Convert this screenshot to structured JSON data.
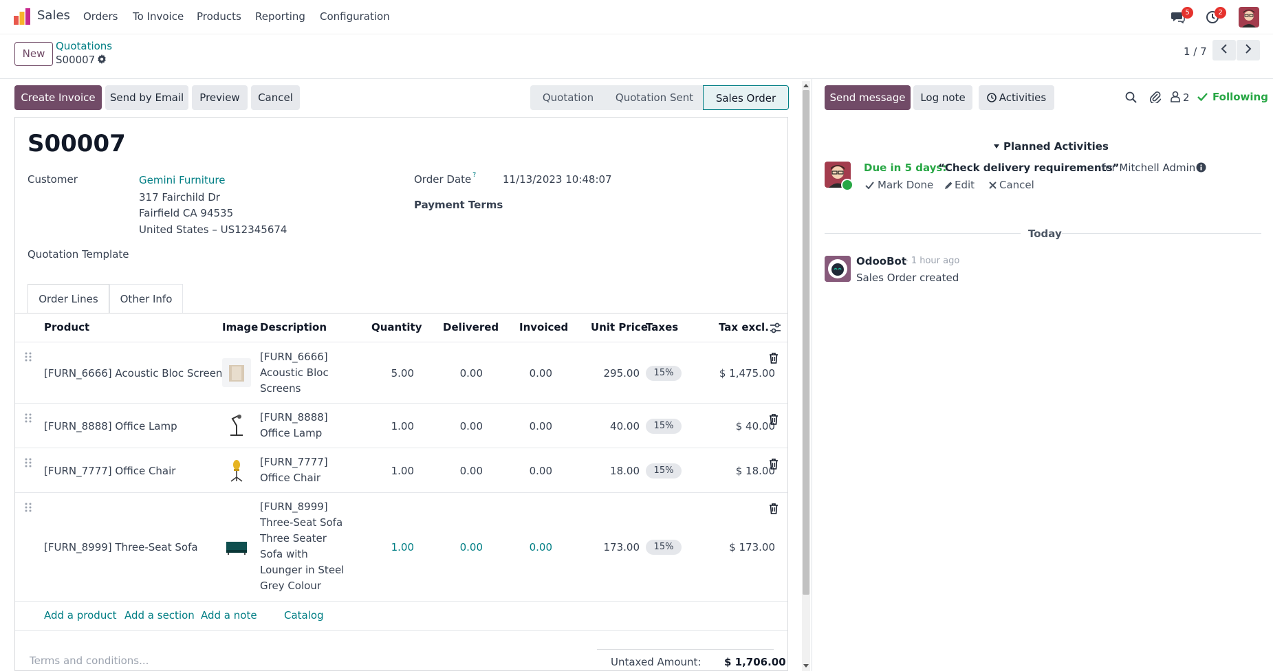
{
  "navbar": {
    "app_name": "Sales",
    "menu": [
      "Orders",
      "To Invoice",
      "Products",
      "Reporting",
      "Configuration"
    ],
    "messages_badge": "5",
    "activities_badge": "2"
  },
  "control_panel": {
    "new_label": "New",
    "breadcrumb_parent": "Quotations",
    "breadcrumb_current": "S00007",
    "pager": "1 / 7"
  },
  "actions": {
    "create_invoice": "Create Invoice",
    "send_by_email": "Send by Email",
    "preview": "Preview",
    "cancel": "Cancel"
  },
  "statusbar": {
    "steps": [
      "Quotation",
      "Quotation Sent",
      "Sales Order"
    ],
    "active": "Sales Order"
  },
  "form": {
    "title": "S00007",
    "customer_label": "Customer",
    "customer_name": "Gemini Furniture",
    "customer_address": [
      "317 Fairchild Dr",
      "Fairfield CA 94535",
      "United States – US12345674"
    ],
    "order_date_label": "Order Date",
    "order_date_help": "?",
    "order_date_value": "11/13/2023 10:48:07",
    "payment_terms_label": "Payment Terms",
    "quotation_template_label": "Quotation Template"
  },
  "tabs": [
    "Order Lines",
    "Other Info"
  ],
  "table": {
    "headers": {
      "product": "Product",
      "image": "Image",
      "description": "Description",
      "quantity": "Quantity",
      "delivered": "Delivered",
      "invoiced": "Invoiced",
      "unit_price": "Unit Price",
      "taxes": "Taxes",
      "tax_excl": "Tax excl."
    },
    "rows": [
      {
        "product": "[FURN_6666] Acoustic Bloc Screens",
        "description": [
          "[FURN_6666]",
          "Acoustic Bloc",
          "Screens"
        ],
        "quantity": "5.00",
        "delivered": "0.00",
        "invoiced": "0.00",
        "unit_price": "295.00",
        "tax": "15%",
        "subtotal": "$ 1,475.00"
      },
      {
        "product": "[FURN_8888] Office Lamp",
        "description": [
          "[FURN_8888]",
          "Office Lamp"
        ],
        "quantity": "1.00",
        "delivered": "0.00",
        "invoiced": "0.00",
        "unit_price": "40.00",
        "tax": "15%",
        "subtotal": "$ 40.00"
      },
      {
        "product": "[FURN_7777] Office Chair",
        "description": [
          "[FURN_7777]",
          "Office Chair"
        ],
        "quantity": "1.00",
        "delivered": "0.00",
        "invoiced": "0.00",
        "unit_price": "18.00",
        "tax": "15%",
        "subtotal": "$ 18.00"
      },
      {
        "product": "[FURN_8999] Three-Seat Sofa",
        "description": [
          "[FURN_8999]",
          "Three-Seat Sofa",
          "Three Seater",
          "Sofa with",
          "Lounger in Steel",
          "Grey Colour"
        ],
        "quantity": "1.00",
        "delivered": "0.00",
        "invoiced": "0.00",
        "unit_price": "173.00",
        "tax": "15%",
        "subtotal": "$ 173.00"
      }
    ],
    "add_links": [
      "Add a product",
      "Add a section",
      "Add a note",
      "Catalog"
    ]
  },
  "footer": {
    "terms_placeholder": "Terms and conditions...",
    "untaxed_label": "Untaxed Amount:",
    "untaxed_value": "$ 1,706.00"
  },
  "chatter": {
    "send_message": "Send message",
    "log_note": "Log note",
    "activities": "Activities",
    "followers_count": "2",
    "following": "Following",
    "planned_activities": "Planned Activities",
    "activity": {
      "due": "Due in 5 days:",
      "summary": "“Check delivery requirements”",
      "assignee": "for Mitchell Admin",
      "mark_done": "Mark Done",
      "edit": "Edit",
      "cancel": "Cancel"
    },
    "today_label": "Today",
    "message": {
      "author": "OdooBot",
      "time": "- 1 hour ago",
      "body": "Sales Order created"
    }
  },
  "colors": {
    "primary": "#714b67",
    "link": "#017e84",
    "success": "#28a745",
    "badge_red": "#e5322d"
  }
}
